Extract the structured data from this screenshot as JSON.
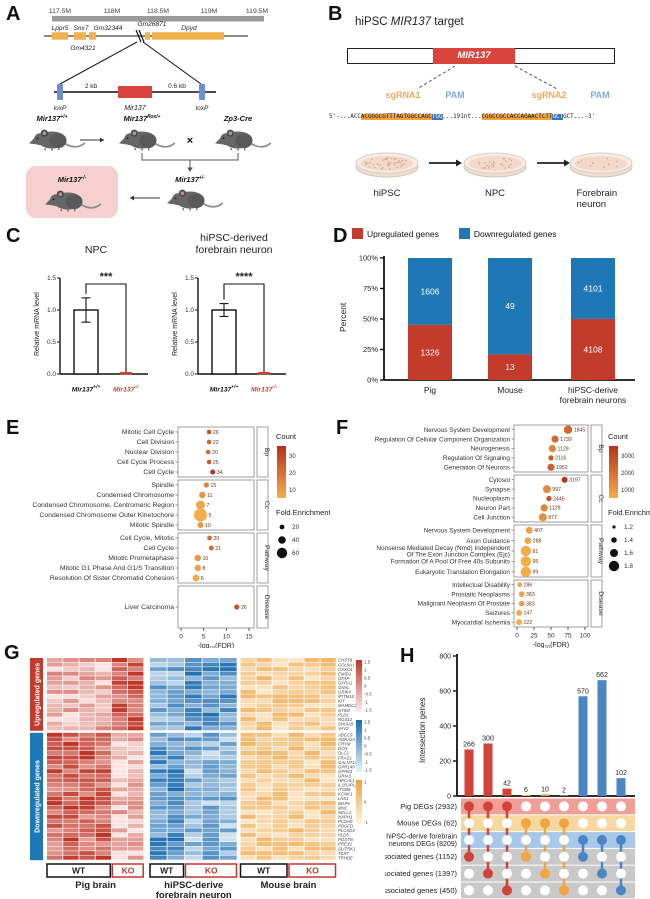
{
  "colors": {
    "up_red": "#c23b2b",
    "down_blue": "#1e78b5",
    "mouse_orange": "#f0a53f",
    "mir_red": "#d9453c",
    "loxp_blue": "#6b8fd1",
    "gene_orange": "#f2b24b",
    "dot_low": "#f4ad4a",
    "dot_high": "#b5321c"
  },
  "panels": {
    "A": {
      "label": "A",
      "ruler": [
        "117.5M",
        "118M",
        "118.5M",
        "119M",
        "119.5M"
      ],
      "genes": {
        "g1": "Lppr5",
        "g2": "Snx7",
        "g3": "Gm32344",
        "g4": "Gm26871",
        "g5": "Dpyd",
        "g6": "Gm4321"
      },
      "construct": {
        "loxp_left": "loxP",
        "dist1": "2 kb",
        "mir": "Mir137",
        "dist2": "0.6 kb",
        "loxp_right": "loxP"
      },
      "mice": {
        "wt_base": "Mir137",
        "wt_sup": "+/+",
        "flox_base": "Mir137",
        "flox_sup": "flox/+",
        "cre": "Zp3-Cre",
        "cross": "×",
        "het_base": "Mir137",
        "het_sup": "+/-",
        "ko_base": "Mir137",
        "ko_sup": "-/-"
      }
    },
    "B": {
      "label": "B",
      "title_pre": "hiPSC ",
      "title_gene": "MIR137",
      "title_post": " target",
      "gene_box": "MIR137",
      "sgrna1": "sgRNA1",
      "pam1": "PAM",
      "sgrna2": "sgRNA2",
      "pam2": "PAM",
      "seq": {
        "p1": "5'-...ACC",
        "s1": "ACGGGCGTTTAGTGGCCAGC",
        "pamseq1": "TGG",
        "mid": "...191nt...",
        "s2": "CGGCCGCCACCAGAACTCTT",
        "pamseq2": "GCT",
        "p2": "GCT...-3'"
      },
      "stages": [
        "hiPSC",
        "NPC",
        "Forebrain neuron"
      ]
    },
    "C": {
      "label": "C"
    },
    "D": {
      "label": "D"
    },
    "E": {
      "label": "E"
    },
    "F": {
      "label": "F"
    },
    "G": {
      "label": "G"
    },
    "H": {
      "label": "H"
    }
  },
  "chart_data": {
    "C": {
      "type": "bar",
      "charts": [
        {
          "title": "NPC",
          "title2": "",
          "ylabel": "Relative mRNA level",
          "yticks": [
            "0.0",
            "0.5",
            "1.0",
            "1.5"
          ],
          "ymax": 1.5,
          "sig": "***",
          "groups": [
            {
              "base": "Mir137",
              "sup": "+/+",
              "value": 1.0,
              "err": 0.19
            },
            {
              "base": "Mir137",
              "sup": "-/-",
              "value": 0.0,
              "err": 0
            }
          ]
        },
        {
          "title": "hiPSC-derived",
          "title2": "forebrain neuron",
          "ylabel": "Relative mRNA level",
          "yticks": [
            "0.0",
            "0.5",
            "1.0",
            "1.5"
          ],
          "ymax": 1.5,
          "sig": "****",
          "groups": [
            {
              "base": "Mir137",
              "sup": "+/+",
              "value": 1.0,
              "err": 0.1
            },
            {
              "base": "Mir137",
              "sup": "-/-",
              "value": 0.0,
              "err": 0
            }
          ]
        }
      ]
    },
    "D": {
      "type": "stacked-bar",
      "ylabel": "Percent",
      "yticks": [
        "0%",
        "25%",
        "50%",
        "75%",
        "100%"
      ],
      "legend": [
        {
          "label": "Upregulated genes",
          "color": "#c23b2b"
        },
        {
          "label": "Downregulated genes",
          "color": "#1e78b5"
        }
      ],
      "categories": [
        {
          "label": "Pig",
          "label2": "",
          "up": 1326,
          "down": 1606
        },
        {
          "label": "Mouse",
          "label2": "",
          "up": 13,
          "down": 49
        },
        {
          "label": "hiPSC-derive",
          "label2": "forebrain neurons",
          "up": 4108,
          "down": 4101
        }
      ]
    },
    "E": {
      "type": "dot",
      "xlabel": {
        "pre": "-log",
        "sub": "10",
        "post": "(FDR)"
      },
      "xticks": [
        0,
        5,
        10,
        15
      ],
      "xmax": 15,
      "legend": {
        "count_title": "Count",
        "count_ticks": [
          30,
          20,
          10
        ],
        "count_domain": [
          5,
          34
        ],
        "fold_title": "Fold.Enrichment",
        "fold_ticks": [
          20,
          40,
          60
        ]
      },
      "facets": [
        {
          "name": "Bp",
          "rows": [
            [
              "Mitotic Cell Cycle",
              6.2,
              26,
              2.3
            ],
            [
              "Cell Division",
              6.2,
              22,
              2.3
            ],
            [
              "Nuclear Division",
              6.0,
              20,
              2.3
            ],
            [
              "Cell Cycle Process",
              6.2,
              25,
              2.3
            ],
            [
              "Cell Cycle",
              7.0,
              34,
              2.5
            ]
          ]
        },
        {
          "name": "Cc",
          "rows": [
            [
              "Spindle",
              5.6,
              15,
              2.6
            ],
            [
              "Condensed Chromosome",
              4.7,
              11,
              3.2
            ],
            [
              "Condensed Chromosome, Centromeric Region",
              4.3,
              7,
              4.5
            ],
            [
              "Condensed Chromosome Outer Kinetochore",
              4.3,
              5,
              6.5
            ],
            [
              "Mitotic Spindle",
              4.3,
              10,
              3.0
            ]
          ]
        },
        {
          "name": "Pathway",
          "rows": [
            [
              "Cell Cycle, Mitotic",
              6.3,
              20,
              2.4
            ],
            [
              "Cell Cycle",
              6.7,
              21,
              2.4
            ],
            [
              "Mitotic Prometaphase",
              3.7,
              10,
              3.2
            ],
            [
              "Mitotic G1 Phase And G1/S Transition",
              3.7,
              8,
              3.2
            ],
            [
              "Resolution Of Sister Chromatid Cohesion",
              3.3,
              6,
              3.4
            ]
          ]
        },
        {
          "name": "Disease",
          "rows": [
            [
              "Liver Carcinoma",
              12.3,
              26,
              2.6
            ]
          ]
        }
      ]
    },
    "F": {
      "type": "dot",
      "xlabel": {
        "pre": "-log",
        "sub": "10",
        "post": "(FDR)"
      },
      "xticks": [
        0,
        25,
        50,
        75,
        100
      ],
      "xmax": 100,
      "legend": {
        "count_title": "Count",
        "count_ticks": [
          3000,
          2000,
          1000
        ],
        "count_domain": [
          90,
          3200
        ],
        "fold_title": "Fold.Enrichment",
        "fold_ticks": [
          1.2,
          1.4,
          1.6,
          1.8
        ]
      },
      "facets": [
        {
          "name": "Bp",
          "rows": [
            [
              "Nervous System Development",
              75,
              1845,
              4.2
            ],
            [
              "Regulation Of Cellular Component Organization",
              56,
              1739,
              3.6
            ],
            [
              "Neurogenesis",
              52,
              1129,
              3.6
            ],
            [
              "Regulation Of Signaling",
              50,
              2116,
              2.6
            ],
            [
              "Generation Of Neurons",
              50,
              1952,
              3.6
            ]
          ]
        },
        {
          "name": "Cc",
          "rows": [
            [
              "Cytosol",
              70,
              3197,
              3.0
            ],
            [
              "Synapse",
              44,
              997,
              4.0
            ],
            [
              "Nucleoplasm",
              47,
              2446,
              2.6
            ],
            [
              "Neuron Part",
              40,
              1129,
              3.6
            ],
            [
              "Cell Junction",
              38,
              877,
              4.0
            ]
          ]
        },
        {
          "name": "Pathway",
          "rows": [
            [
              "Nervous System Development",
              18,
              407,
              3.4
            ],
            [
              "Axon Guidance",
              16,
              288,
              3.4
            ],
            [
              [
                "Nonsense Mediated Decay (Nmd) Independent",
                "Of The Exon Junction Complex (Ejc)"
              ],
              13,
              91,
              5.2
            ],
            [
              "Formation Of A Pool Of Free 40s Subunits",
              13,
              95,
              5.2
            ],
            [
              "Eukaryotic Translation Elongation",
              13,
              99,
              5.2
            ]
          ]
        },
        {
          "name": "Disease",
          "rows": [
            [
              "Intellectual Disability",
              4,
              286,
              2.4
            ],
            [
              "Prostatic Neoplasms",
              7,
              383,
              2.8
            ],
            [
              "Malignant Neoplasm Of Prostate",
              7,
              383,
              2.8
            ],
            [
              "Seizures",
              3,
              147,
              3.0
            ],
            [
              "Myocardial Ischemia",
              3,
              122,
              3.0
            ]
          ]
        }
      ]
    },
    "G": {
      "type": "heatmap",
      "row_groups": [
        {
          "label": "Upregulated genes",
          "color": "#c23b2b",
          "genes": [
            "CHST8",
            "COL9A1",
            "CXXC4",
            "EMID1",
            "GFAP",
            "GFRA1",
            "GNAL",
            "GRIK4",
            "IFITM10",
            "KIT",
            "MAMDC2",
            "NT5M",
            "PLD1",
            "RGS12",
            "SHISA9",
            "VAV2"
          ]
        },
        {
          "label": "Downregulated genes",
          "color": "#1e78b5",
          "genes": [
            "ABCC9",
            "ADRA2A",
            "CRYM",
            "DCN",
            "DLC1",
            "FRAS1",
            "GALNT14",
            "GPR149",
            "GPR63",
            "GRIA3",
            "HPCAL1",
            "IL1RAPL2",
            "ITGB8",
            "KCNK1",
            "LNX1",
            "MAP5",
            "MN1",
            "NELL1",
            "NXPH1",
            "PCDH9",
            "PDGFD",
            "PLCXD3",
            "PLD5",
            "POSTN",
            "PREX1",
            "SLITRK1",
            "TERT",
            "TRHDE"
          ]
        }
      ],
      "col_groups": [
        {
          "label": "Pig brain",
          "label2": "",
          "wt": 4,
          "ko": 2,
          "palette": "red"
        },
        {
          "label": "hiPSC-derive",
          "label2": "forebrain neuron",
          "wt": 2,
          "ko": 3,
          "palette": "blue"
        },
        {
          "label": "Mouse brain",
          "label2": "",
          "wt": 3,
          "ko": 3,
          "palette": "orange"
        }
      ],
      "wt_label": "WT",
      "ko_label": "KO",
      "legends": [
        {
          "palette": "red",
          "ticks": [
            "1.5",
            "1",
            "0.5",
            "0",
            "-0.5",
            "-1",
            "-1.5"
          ]
        },
        {
          "palette": "blue",
          "ticks": [
            "1.5",
            "1",
            "0.5",
            "0",
            "-0.5",
            "-1",
            "-1.5"
          ]
        },
        {
          "palette": "orange",
          "ticks": [
            "1",
            "0",
            "-1"
          ]
        }
      ]
    },
    "H": {
      "type": "upset",
      "ylabel": "Intersection genes",
      "yticks": [
        0,
        200,
        400,
        600,
        800
      ],
      "ymax": 800,
      "bars": [
        {
          "value": 266,
          "color": "#d04338"
        },
        {
          "value": 300,
          "color": "#d04338"
        },
        {
          "value": 42,
          "color": "#d04338"
        },
        {
          "value": 6,
          "color": "#f0a53f"
        },
        {
          "value": 10,
          "color": "#f0a53f"
        },
        {
          "value": 2,
          "color": "#f0a53f"
        },
        {
          "value": 570,
          "color": "#4a86c4"
        },
        {
          "value": 662,
          "color": "#4a86c4"
        },
        {
          "value": 102,
          "color": "#4a86c4"
        }
      ],
      "sets": [
        {
          "label": "Pig DEGs (2932)",
          "label2": "",
          "stripe": "#ef9e98"
        },
        {
          "label": "Mouse DEGs (62)",
          "label2": "",
          "stripe": "#f8d8a1"
        },
        {
          "label": "hiPSC-derive forebrain",
          "label2": "neurons DEGs (8209)",
          "stripe": "#a9c7e6"
        },
        {
          "label": "ASD associated genes (1152)",
          "label2": "",
          "stripe": "#c9c9c9"
        },
        {
          "label": "ID associated genes (1397)",
          "label2": "",
          "stripe": "#c9c9c9"
        },
        {
          "label": "SCZ associated genes (450)",
          "label2": "",
          "stripe": "#c9c9c9"
        }
      ],
      "combos": [
        [
          0,
          3
        ],
        [
          0,
          4
        ],
        [
          0,
          5
        ],
        [
          1,
          3
        ],
        [
          1,
          4
        ],
        [
          1,
          5
        ],
        [
          2,
          3
        ],
        [
          2,
          4
        ],
        [
          2,
          5
        ]
      ]
    }
  }
}
